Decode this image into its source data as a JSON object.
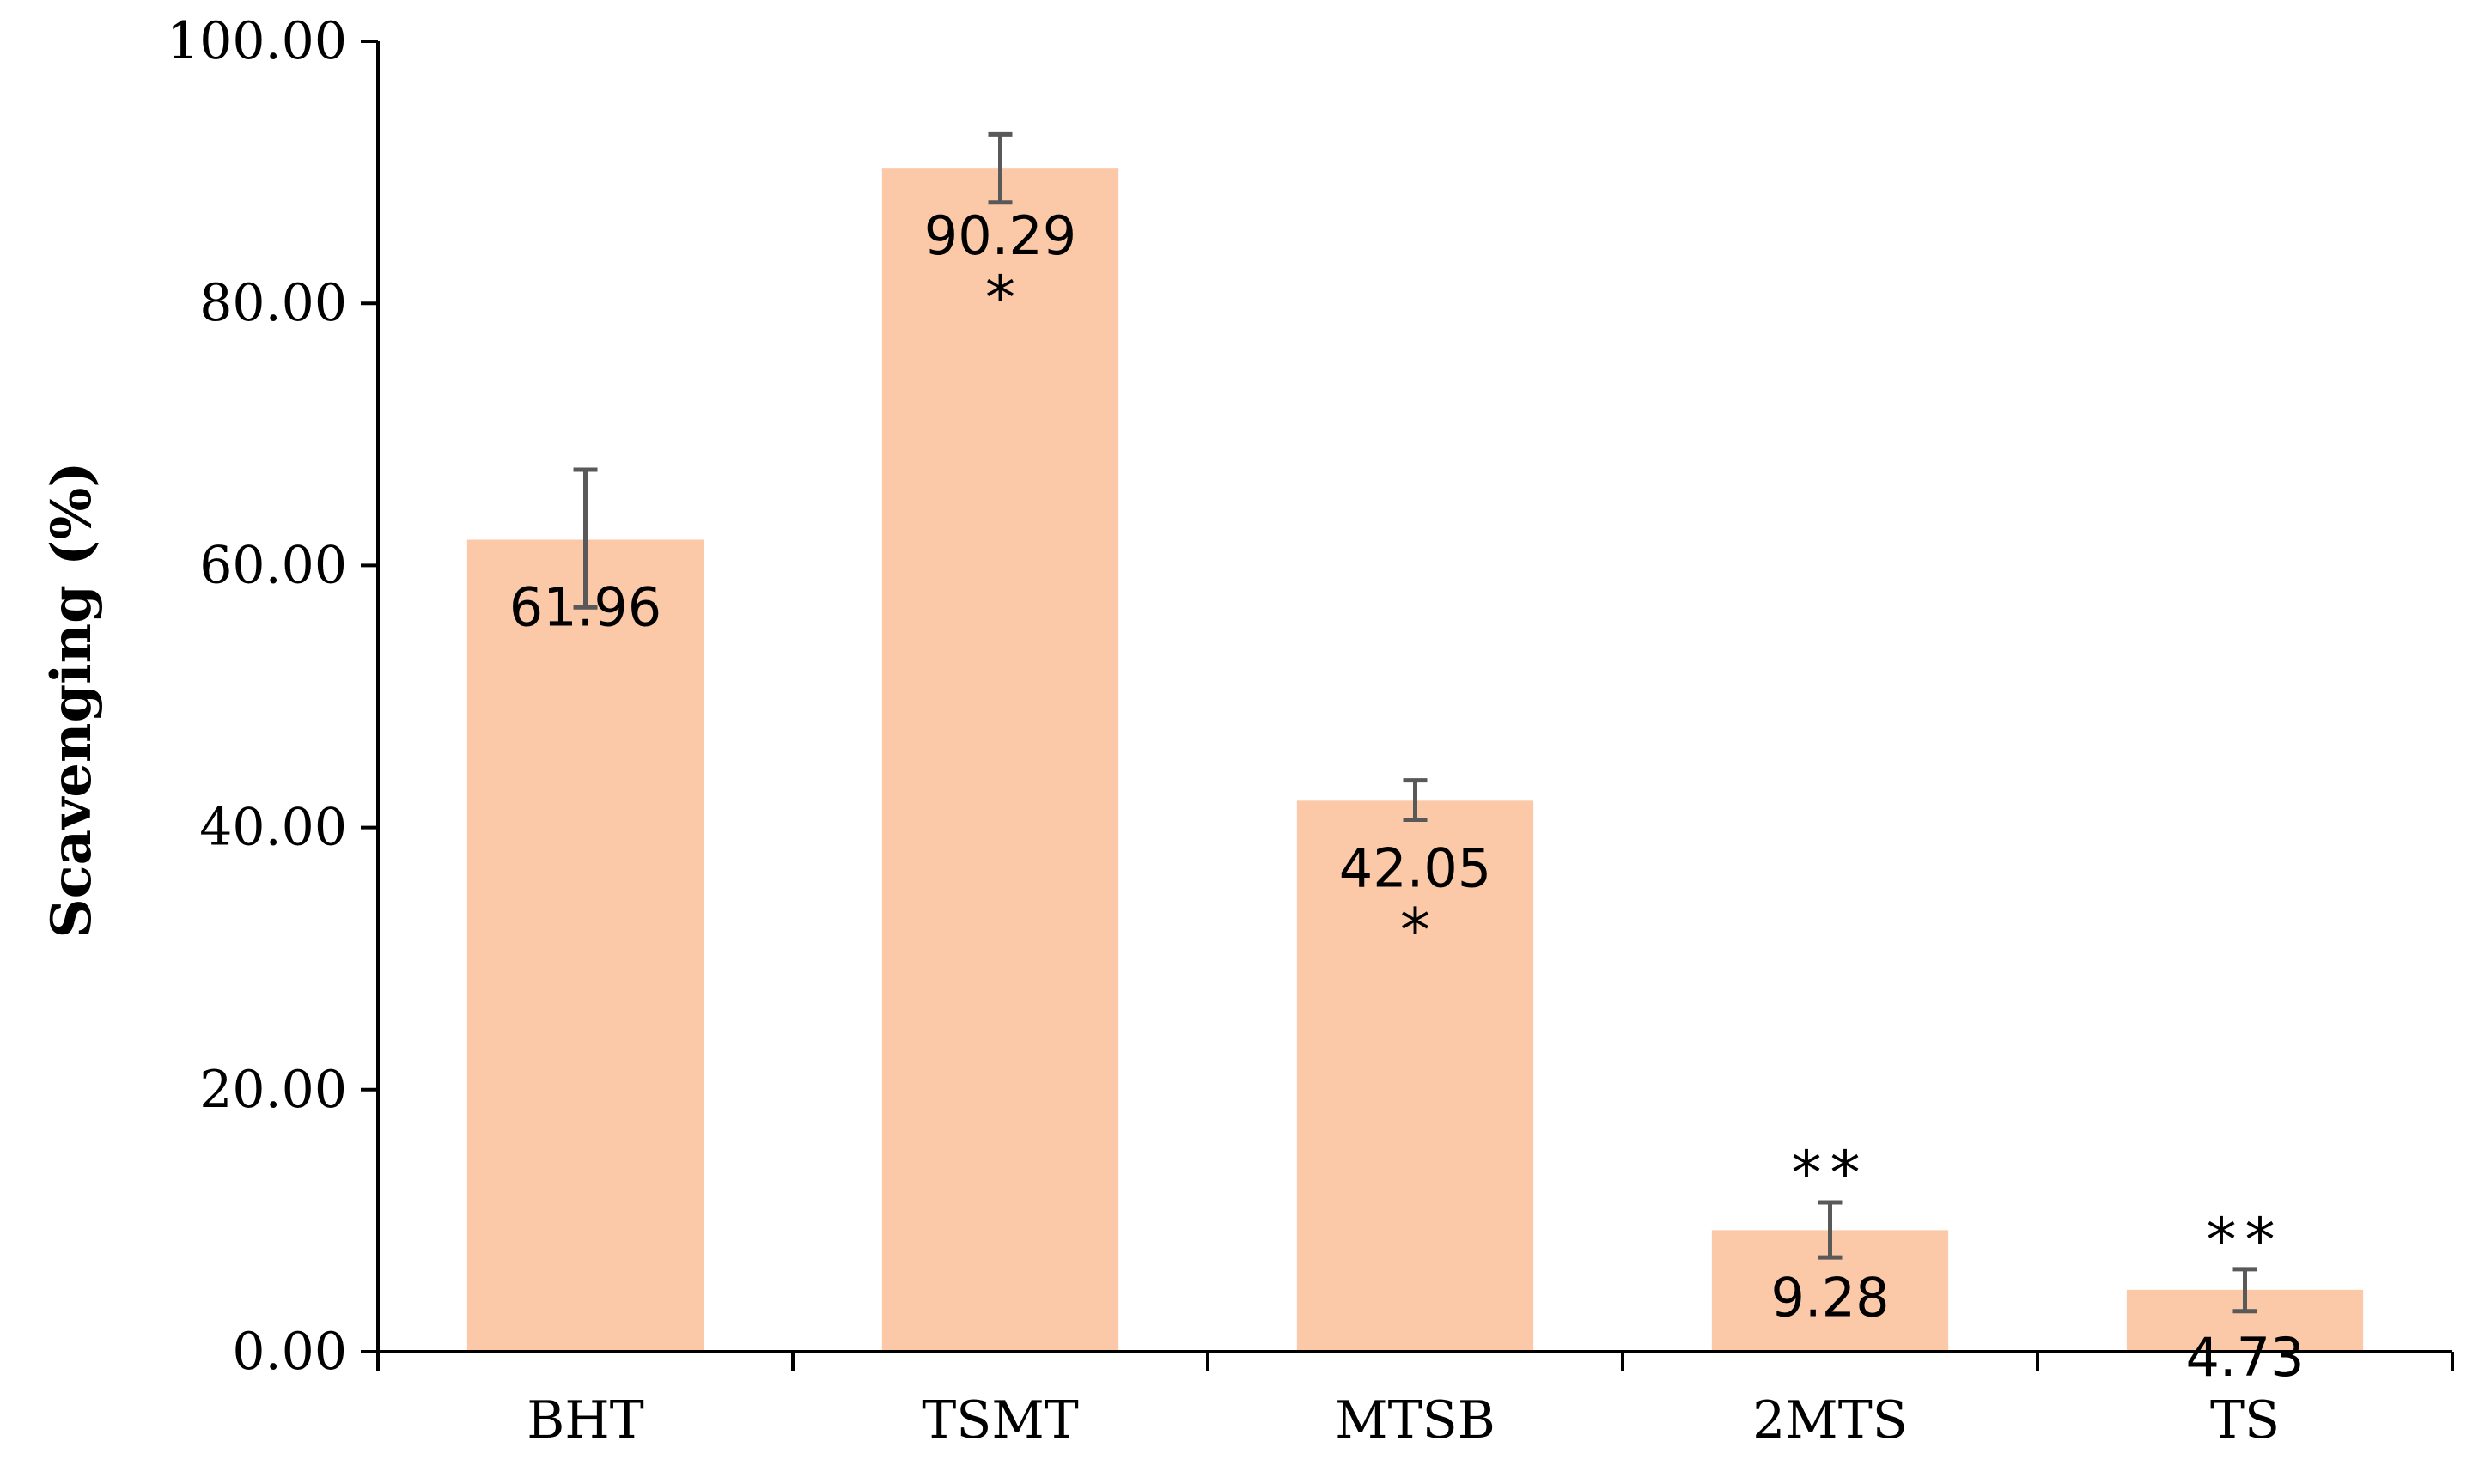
{
  "chart_data": {
    "type": "bar",
    "categories": [
      "BHT",
      "TSMT",
      "MTSB",
      "2MTS",
      "TS"
    ],
    "values": [
      61.96,
      90.29,
      42.05,
      9.28,
      4.73
    ],
    "value_labels": [
      "61.96",
      "90.29",
      "42.05",
      "9.28",
      "4.73"
    ],
    "error_bars": [
      {
        "low": 56.8,
        "high": 67.3
      },
      {
        "low": 87.7,
        "high": 92.9
      },
      {
        "low": 40.6,
        "high": 43.6
      },
      {
        "low": 7.2,
        "high": 11.4
      },
      {
        "low": 3.1,
        "high": 6.3
      }
    ],
    "significance": [
      "",
      "*",
      "*",
      "**",
      "**"
    ],
    "title": "",
    "xlabel": "",
    "ylabel": "Scavenging (%)",
    "ylim": [
      0,
      100
    ],
    "yticks": [
      0,
      20,
      40,
      60,
      80,
      100
    ],
    "ytick_labels": [
      "0.00",
      "20.00",
      "40.00",
      "60.00",
      "80.00",
      "100.00"
    ],
    "grid": false,
    "legend": "none",
    "colors": {
      "bar": "#fbc9a7",
      "error_bar": "#595959",
      "axis": "#000000"
    }
  }
}
